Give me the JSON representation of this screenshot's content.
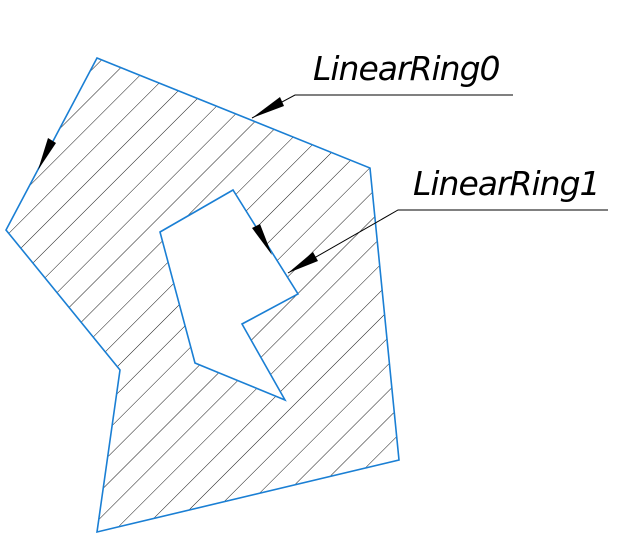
{
  "labels": [
    "LinearRing0",
    "LinearRing1"
  ]
}
